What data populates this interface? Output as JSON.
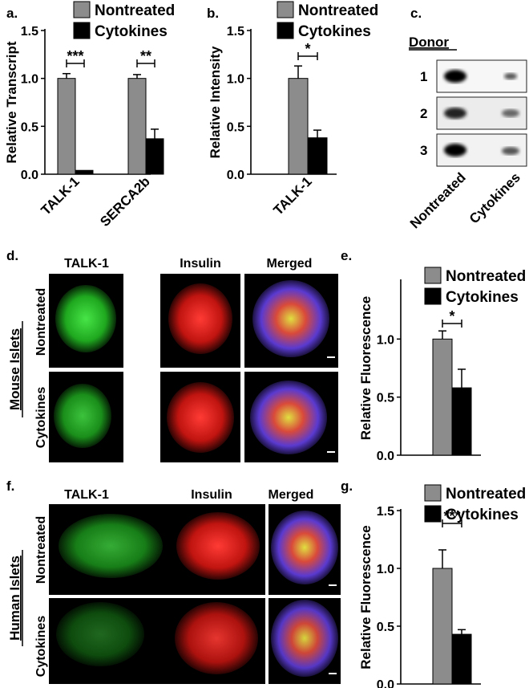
{
  "panels": {
    "a": "a.",
    "b": "b.",
    "c": "c.",
    "d": "d.",
    "e": "e.",
    "f": "f.",
    "g": "g."
  },
  "legend": {
    "nontreated": "Nontreated",
    "cytokines": "Cytokines"
  },
  "colors": {
    "nontreated": "#8c8c8c",
    "cytokines": "#000000",
    "green": "#2fd12f",
    "red": "#e8201c",
    "blue": "#2b3bd0"
  },
  "blot": {
    "header": "Donor",
    "donors": [
      "1",
      "2",
      "3"
    ],
    "lanes": [
      "Nontreated",
      "Cytokines"
    ]
  },
  "micro": {
    "columns": [
      "TALK-1",
      "Insulin",
      "Merged"
    ],
    "rows": [
      "Nontreated",
      "Cytokines"
    ],
    "mouse_label": "Mouse Islets",
    "human_label": "Human Islets"
  },
  "chart_data": [
    {
      "panel": "a",
      "type": "bar",
      "categories": [
        "TALK-1",
        "SERCA2b"
      ],
      "series": [
        {
          "name": "Nontreated",
          "values": [
            1.0,
            1.0
          ],
          "errors": [
            0.05,
            0.04
          ]
        },
        {
          "name": "Cytokines",
          "values": [
            0.04,
            0.37
          ],
          "errors": [
            0.0,
            0.1
          ]
        }
      ],
      "ylabel": "Relative Transcript",
      "ylim": [
        0,
        1.5
      ],
      "yticks": [
        "0.0",
        "0.5",
        "1.0",
        "1.5"
      ],
      "significance": [
        "***",
        "**"
      ]
    },
    {
      "panel": "b",
      "type": "bar",
      "categories": [
        "TALK-1"
      ],
      "series": [
        {
          "name": "Nontreated",
          "values": [
            1.0
          ],
          "errors": [
            0.13
          ]
        },
        {
          "name": "Cytokines",
          "values": [
            0.38
          ],
          "errors": [
            0.08
          ]
        }
      ],
      "ylabel": "Relative Intensity",
      "ylim": [
        0,
        1.5
      ],
      "yticks": [
        "0.0",
        "0.5",
        "1.0",
        "1.5"
      ],
      "significance": [
        "*"
      ]
    },
    {
      "panel": "e",
      "type": "bar",
      "categories": [
        ""
      ],
      "series": [
        {
          "name": "Nontreated",
          "values": [
            1.0
          ],
          "errors": [
            0.07
          ]
        },
        {
          "name": "Cytokines",
          "values": [
            0.58
          ],
          "errors": [
            0.16
          ]
        }
      ],
      "ylabel": "Relative Fluorescence",
      "ylim": [
        0,
        1.5
      ],
      "yticks": [
        "0.0",
        "0.5",
        "1.0"
      ],
      "significance": [
        "*"
      ]
    },
    {
      "panel": "g",
      "type": "bar",
      "categories": [
        ""
      ],
      "series": [
        {
          "name": "Nontreated",
          "values": [
            1.0
          ],
          "errors": [
            0.16
          ]
        },
        {
          "name": "Cytokines",
          "values": [
            0.43
          ],
          "errors": [
            0.04
          ]
        }
      ],
      "ylabel": "Relative Fluorescence",
      "ylim": [
        0,
        1.5
      ],
      "yticks": [
        "0.0",
        "0.5",
        "1.0",
        "1.5"
      ],
      "significance": [
        "***"
      ]
    }
  ]
}
